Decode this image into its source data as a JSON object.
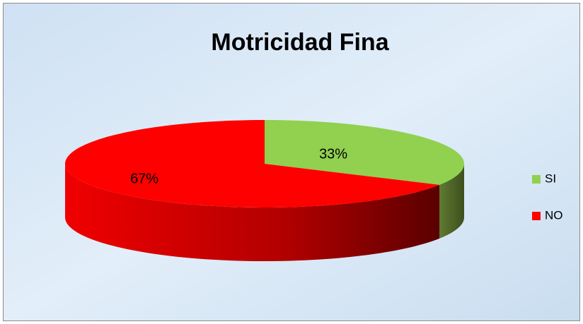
{
  "chart_data": {
    "type": "pie",
    "title": "Motricidad Fina",
    "categories": [
      "SI",
      "NO"
    ],
    "values": [
      33,
      67
    ],
    "value_labels": [
      "33%",
      "67%"
    ],
    "colors": [
      "#92d050",
      "#ff0000"
    ],
    "legend": "right"
  }
}
